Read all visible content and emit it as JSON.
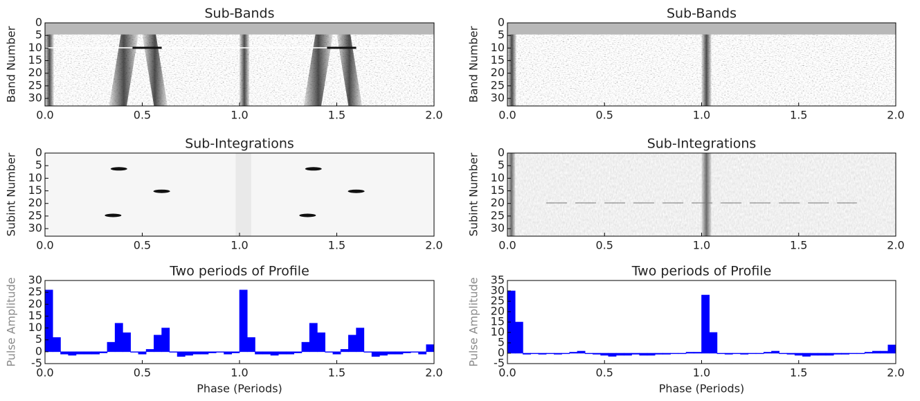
{
  "chart_data": [
    {
      "type": "heatmap",
      "title": "Sub-Bands",
      "ylabel": "Band Number",
      "xlim": [
        0,
        2
      ],
      "ylim": [
        33,
        0
      ],
      "xticks": [
        {
          "value": 0,
          "label": "0.0"
        },
        {
          "value": 0.5,
          "label": "0.5"
        },
        {
          "value": 1,
          "label": "1.0"
        },
        {
          "value": 1.5,
          "label": "1.5"
        },
        {
          "value": 2,
          "label": "2.0"
        }
      ],
      "yticks": [
        0,
        5,
        10,
        15,
        20,
        25,
        30
      ]
    },
    {
      "type": "heatmap",
      "title": "Sub-Bands",
      "ylabel": "Band Number",
      "xlim": [
        0,
        2
      ],
      "ylim": [
        33,
        0
      ],
      "xticks": [
        {
          "value": 0,
          "label": "0.0"
        },
        {
          "value": 0.5,
          "label": "0.5"
        },
        {
          "value": 1,
          "label": "1.0"
        },
        {
          "value": 1.5,
          "label": "1.5"
        },
        {
          "value": 2,
          "label": "2.0"
        }
      ],
      "yticks": [
        0,
        5,
        10,
        15,
        20,
        25,
        30
      ]
    },
    {
      "type": "heatmap",
      "title": "Sub-Integrations",
      "ylabel": "Subint Number",
      "xlim": [
        0,
        2
      ],
      "ylim": [
        33,
        0
      ],
      "xticks": [
        {
          "value": 0,
          "label": "0.0"
        },
        {
          "value": 0.5,
          "label": "0.5"
        },
        {
          "value": 1,
          "label": "1.0"
        },
        {
          "value": 1.5,
          "label": "1.5"
        },
        {
          "value": 2,
          "label": "2.0"
        }
      ],
      "yticks": [
        0,
        5,
        10,
        15,
        20,
        25,
        30
      ]
    },
    {
      "type": "heatmap",
      "title": "Sub-Integrations",
      "ylabel": "Subint Number",
      "xlim": [
        0,
        2
      ],
      "ylim": [
        33,
        0
      ],
      "xticks": [
        {
          "value": 0,
          "label": "0.0"
        },
        {
          "value": 0.5,
          "label": "0.5"
        },
        {
          "value": 1,
          "label": "1.0"
        },
        {
          "value": 1.5,
          "label": "1.5"
        },
        {
          "value": 2,
          "label": "2.0"
        }
      ],
      "yticks": [
        0,
        5,
        10,
        15,
        20,
        25,
        30
      ]
    },
    {
      "type": "histogram",
      "title": "Two periods of Profile",
      "ylabel": "Pulse Amplitude",
      "xlabel": "Phase (Periods)",
      "color": "#0000ff",
      "xlim": [
        0,
        2
      ],
      "ylim": [
        -5,
        30
      ],
      "xticks": [
        {
          "value": 0,
          "label": "0.0"
        },
        {
          "value": 0.5,
          "label": "0.5"
        },
        {
          "value": 1,
          "label": "1.0"
        },
        {
          "value": 1.5,
          "label": "1.5"
        },
        {
          "value": 2,
          "label": "2.0"
        }
      ],
      "yticks": [
        -5,
        0,
        5,
        10,
        15,
        20,
        25,
        30
      ],
      "bins": [
        0,
        0.04,
        0.08,
        0.12,
        0.16,
        0.2,
        0.24,
        0.28,
        0.32,
        0.36,
        0.4,
        0.44,
        0.48,
        0.52,
        0.56,
        0.6,
        0.64,
        0.68,
        0.72,
        0.76,
        0.8,
        0.84,
        0.88,
        0.92,
        0.96,
        1,
        1.04,
        1.08,
        1.12,
        1.16,
        1.2,
        1.24,
        1.28,
        1.32,
        1.36,
        1.4,
        1.44,
        1.48,
        1.52,
        1.56,
        1.6,
        1.64,
        1.68,
        1.72,
        1.76,
        1.8,
        1.84,
        1.88,
        1.92,
        1.96,
        2
      ],
      "values": [
        26,
        6,
        -1,
        -1.5,
        -1,
        -1,
        -1,
        -0.5,
        4,
        12,
        8,
        0,
        -1,
        1,
        7,
        10,
        0,
        -2,
        -1.5,
        -1,
        -1,
        -0.5,
        0,
        -1,
        -0.5,
        26,
        6,
        -1,
        -1,
        -1.5,
        -1,
        -1,
        -0.5,
        4,
        12,
        8,
        0,
        -1,
        1,
        7,
        10,
        0,
        -2,
        -1.5,
        -1,
        -1,
        -0.5,
        0,
        -1,
        3
      ]
    },
    {
      "type": "histogram",
      "title": "Two periods of Profile",
      "ylabel": "Pulse Amplitude",
      "xlabel": "Phase (Periods)",
      "color": "#0000ff",
      "xlim": [
        0,
        2
      ],
      "ylim": [
        -5,
        35
      ],
      "xticks": [
        {
          "value": 0,
          "label": "0.0"
        },
        {
          "value": 0.5,
          "label": "0.5"
        },
        {
          "value": 1,
          "label": "1.0"
        },
        {
          "value": 1.5,
          "label": "1.5"
        },
        {
          "value": 2,
          "label": "2.0"
        }
      ],
      "yticks": [
        -5,
        0,
        5,
        10,
        15,
        20,
        25,
        30,
        35
      ],
      "bins": [
        0,
        0.04,
        0.08,
        0.12,
        0.16,
        0.2,
        0.24,
        0.28,
        0.32,
        0.36,
        0.4,
        0.44,
        0.48,
        0.52,
        0.56,
        0.6,
        0.64,
        0.68,
        0.72,
        0.76,
        0.8,
        0.84,
        0.88,
        0.92,
        0.96,
        1,
        1.04,
        1.08,
        1.12,
        1.16,
        1.2,
        1.24,
        1.28,
        1.32,
        1.36,
        1.4,
        1.44,
        1.48,
        1.52,
        1.56,
        1.6,
        1.64,
        1.68,
        1.72,
        1.76,
        1.8,
        1.84,
        1.88,
        1.92,
        1.96,
        2
      ],
      "values": [
        30,
        15,
        -0.5,
        0,
        -0.5,
        0,
        -0.5,
        0,
        0.5,
        1,
        0,
        -0.5,
        -1,
        -1.5,
        -1,
        -1,
        -0.5,
        -1,
        -1,
        -0.5,
        -0.5,
        0,
        0,
        0.5,
        0.5,
        28,
        10,
        0,
        -0.5,
        0,
        -0.5,
        0,
        0,
        0.5,
        1,
        0,
        -0.5,
        -1,
        -1.5,
        -1,
        -1,
        -1,
        -0.5,
        -0.5,
        0,
        0,
        0.5,
        1,
        1,
        4
      ]
    }
  ]
}
